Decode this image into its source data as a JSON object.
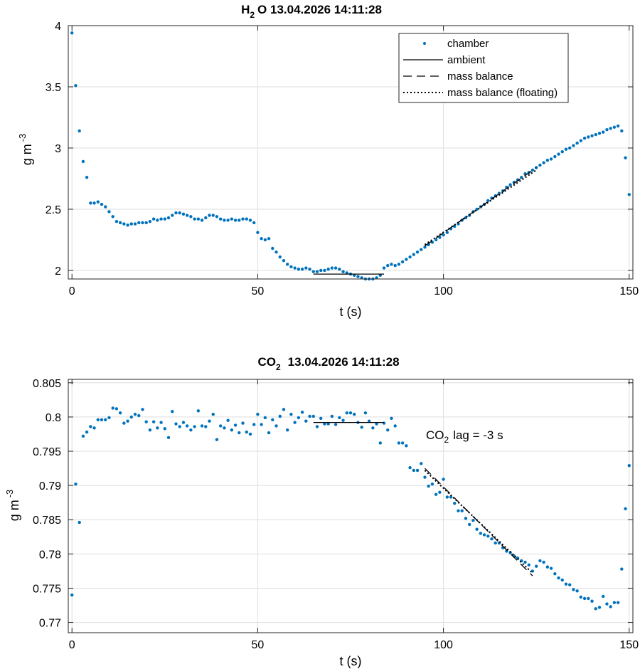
{
  "chart_data": [
    {
      "type": "scatter",
      "title": "H2O  13.04.2026 14:11:28",
      "title_main": "H",
      "title_sub": "2",
      "title_rest": "O  13.04.2026 14:11:28",
      "xlabel": "t (s)",
      "ylabel": "g m",
      "ylabel_sup": "-3",
      "xlim": [
        -1,
        151
      ],
      "ylim": [
        1.93,
        4.0
      ],
      "xticks": [
        0,
        50,
        100,
        150
      ],
      "yticks": [
        2,
        2.5,
        3,
        3.5,
        4
      ],
      "ytick_labels": [
        "2",
        "2.5",
        "3",
        "3.5",
        "4"
      ],
      "grid": true,
      "legend": {
        "position": "top-right",
        "entries": [
          "chamber",
          "ambient",
          "mass balance",
          "mass balance (floating)"
        ]
      },
      "series": [
        {
          "name": "chamber",
          "style": "points",
          "color": "#0072BD",
          "x": [
            0,
            1,
            2,
            3,
            4,
            5,
            6,
            7,
            8,
            9,
            10,
            11,
            12,
            13,
            14,
            15,
            16,
            17,
            18,
            19,
            20,
            21,
            22,
            23,
            24,
            25,
            26,
            27,
            28,
            29,
            30,
            31,
            32,
            33,
            34,
            35,
            36,
            37,
            38,
            39,
            40,
            41,
            42,
            43,
            44,
            45,
            46,
            47,
            48,
            49,
            50,
            51,
            52,
            53,
            54,
            55,
            56,
            57,
            58,
            59,
            60,
            61,
            62,
            63,
            64,
            65,
            66,
            67,
            68,
            69,
            70,
            71,
            72,
            73,
            74,
            75,
            76,
            77,
            78,
            79,
            80,
            81,
            82,
            83,
            84,
            85,
            86,
            87,
            88,
            89,
            90,
            91,
            92,
            93,
            94,
            95,
            96,
            97,
            98,
            99,
            100,
            101,
            102,
            103,
            104,
            105,
            106,
            107,
            108,
            109,
            110,
            111,
            112,
            113,
            114,
            115,
            116,
            117,
            118,
            119,
            120,
            121,
            122,
            123,
            124,
            125,
            126,
            127,
            128,
            129,
            130,
            131,
            132,
            133,
            134,
            135,
            136,
            137,
            138,
            139,
            140,
            141,
            142,
            143,
            144,
            145,
            146,
            147,
            148,
            149,
            150
          ],
          "y": [
            3.94,
            3.51,
            3.14,
            2.89,
            2.76,
            2.55,
            2.55,
            2.56,
            2.54,
            2.52,
            2.48,
            2.44,
            2.4,
            2.39,
            2.38,
            2.37,
            2.38,
            2.38,
            2.39,
            2.39,
            2.39,
            2.4,
            2.42,
            2.41,
            2.42,
            2.42,
            2.43,
            2.45,
            2.47,
            2.47,
            2.46,
            2.45,
            2.44,
            2.42,
            2.42,
            2.41,
            2.43,
            2.45,
            2.45,
            2.44,
            2.42,
            2.41,
            2.41,
            2.42,
            2.41,
            2.41,
            2.42,
            2.42,
            2.41,
            2.39,
            2.31,
            2.26,
            2.25,
            2.26,
            2.18,
            2.15,
            2.11,
            2.08,
            2.05,
            2.03,
            2.02,
            2.01,
            2.01,
            2.02,
            2.01,
            1.99,
            1.99,
            2.0,
            2.0,
            2.01,
            2.02,
            2.02,
            2.01,
            1.99,
            1.98,
            1.97,
            1.96,
            1.95,
            1.94,
            1.93,
            1.93,
            1.93,
            1.94,
            1.96,
            2.02,
            2.04,
            2.05,
            2.04,
            2.05,
            2.07,
            2.09,
            2.11,
            2.13,
            2.15,
            2.17,
            2.19,
            2.21,
            2.23,
            2.25,
            2.27,
            2.29,
            2.31,
            2.34,
            2.36,
            2.38,
            2.41,
            2.43,
            2.45,
            2.48,
            2.5,
            2.52,
            2.54,
            2.57,
            2.59,
            2.61,
            2.63,
            2.65,
            2.68,
            2.7,
            2.72,
            2.74,
            2.76,
            2.79,
            2.8,
            2.82,
            2.84,
            2.86,
            2.88,
            2.9,
            2.91,
            2.93,
            2.95,
            2.97,
            2.99,
            3.0,
            3.02,
            3.04,
            3.06,
            3.08,
            3.09,
            3.1,
            3.11,
            3.12,
            3.13,
            3.15,
            3.16,
            3.17,
            3.18,
            3.14,
            2.92,
            2.62
          ]
        },
        {
          "name": "ambient",
          "style": "solid",
          "color": "#000000",
          "x": [
            65,
            84
          ],
          "y": [
            1.97,
            1.97
          ]
        },
        {
          "name": "mass balance",
          "style": "dashed",
          "color": "#000000",
          "x": [
            95,
            125
          ],
          "y": [
            2.2,
            2.84
          ]
        },
        {
          "name": "mass balance (floating)",
          "style": "dotted",
          "color": "#000000",
          "x": [
            95,
            125
          ],
          "y": [
            2.21,
            2.82
          ]
        }
      ]
    },
    {
      "type": "scatter",
      "title": "CO2  13.04.2026 14:11:28",
      "title_main": "CO",
      "title_sub": "2",
      "title_rest": "13.04.2026 14:11:28",
      "xlabel": "t (s)",
      "ylabel": "g m",
      "ylabel_sup": "-3",
      "xlim": [
        -1,
        151
      ],
      "ylim": [
        0.7685,
        0.8055
      ],
      "xticks": [
        0,
        50,
        100,
        150
      ],
      "yticks": [
        0.77,
        0.775,
        0.78,
        0.785,
        0.79,
        0.795,
        0.8,
        0.805
      ],
      "ytick_labels": [
        "0.77",
        "0.775",
        "0.78",
        "0.785",
        "0.79",
        "0.795",
        "0.8",
        "0.805"
      ],
      "grid": true,
      "annotation": {
        "main": "CO",
        "sub": "2",
        "rest": "lag = -3 s",
        "x": 95,
        "y": 0.7965
      },
      "series": [
        {
          "name": "chamber",
          "style": "points",
          "color": "#0072BD",
          "x": [
            0,
            1,
            2,
            3,
            4,
            5,
            6,
            7,
            8,
            9,
            10,
            11,
            12,
            13,
            14,
            15,
            16,
            17,
            18,
            19,
            20,
            21,
            22,
            23,
            24,
            25,
            26,
            27,
            28,
            29,
            30,
            31,
            32,
            33,
            34,
            35,
            36,
            37,
            38,
            39,
            40,
            41,
            42,
            43,
            44,
            45,
            46,
            47,
            48,
            49,
            50,
            51,
            52,
            53,
            54,
            55,
            56,
            57,
            58,
            59,
            60,
            61,
            62,
            63,
            64,
            65,
            66,
            67,
            68,
            69,
            70,
            71,
            72,
            73,
            74,
            75,
            76,
            77,
            78,
            79,
            80,
            81,
            82,
            83,
            84,
            85,
            86,
            87,
            88,
            89,
            90,
            91,
            92,
            93,
            94,
            95,
            96,
            97,
            98,
            99,
            100,
            101,
            102,
            103,
            104,
            105,
            106,
            107,
            108,
            109,
            110,
            111,
            112,
            113,
            114,
            115,
            116,
            117,
            118,
            119,
            120,
            121,
            122,
            123,
            124,
            125,
            126,
            127,
            128,
            129,
            130,
            131,
            132,
            133,
            134,
            135,
            136,
            137,
            138,
            139,
            140,
            141,
            142,
            143,
            144,
            145,
            146,
            147,
            148,
            149,
            150
          ],
          "y": [
            0.774,
            0.7902,
            0.7846,
            0.7972,
            0.7978,
            0.7986,
            0.7984,
            0.7996,
            0.7996,
            0.7996,
            0.7999,
            0.8013,
            0.8012,
            0.8006,
            0.7991,
            0.7994,
            0.8,
            0.8004,
            0.8002,
            0.8011,
            0.7993,
            0.7981,
            0.7993,
            0.7984,
            0.7992,
            0.7983,
            0.797,
            0.8008,
            0.799,
            0.7986,
            0.7992,
            0.7987,
            0.7981,
            0.7986,
            0.8009,
            0.7987,
            0.7986,
            0.7994,
            0.8004,
            0.7967,
            0.7987,
            0.7984,
            0.7995,
            0.7981,
            0.7988,
            0.7977,
            0.7991,
            0.7978,
            0.7975,
            0.7989,
            0.8004,
            0.7989,
            0.7999,
            0.7977,
            0.7996,
            0.7987,
            0.8001,
            0.8011,
            0.7981,
            0.8004,
            0.7992,
            0.7999,
            0.8007,
            0.7994,
            0.8001,
            0.8001,
            0.7986,
            0.7998,
            0.799,
            0.799,
            0.8001,
            0.7989,
            0.7999,
            0.7995,
            0.8006,
            0.8006,
            0.8004,
            0.7992,
            0.7985,
            0.8006,
            0.7994,
            0.7984,
            0.799,
            0.7962,
            0.7991,
            0.7981,
            0.7998,
            0.7987,
            0.7962,
            0.7962,
            0.7958,
            0.7926,
            0.7922,
            0.7922,
            0.7932,
            0.7912,
            0.7899,
            0.7902,
            0.7887,
            0.789,
            0.7909,
            0.7883,
            0.7883,
            0.7874,
            0.7863,
            0.7863,
            0.7852,
            0.7843,
            0.7849,
            0.7836,
            0.783,
            0.7828,
            0.7826,
            0.7822,
            0.7816,
            0.7816,
            0.7809,
            0.7804,
            0.7802,
            0.7797,
            0.7794,
            0.779,
            0.7788,
            0.7784,
            0.7775,
            0.7782,
            0.779,
            0.7788,
            0.7781,
            0.7779,
            0.7771,
            0.7765,
            0.7762,
            0.7756,
            0.7755,
            0.7748,
            0.7746,
            0.7737,
            0.7735,
            0.7735,
            0.7731,
            0.772,
            0.7722,
            0.7738,
            0.7727,
            0.7723,
            0.7729,
            0.7729,
            0.7778,
            0.7866,
            0.7929
          ]
        },
        {
          "name": "ambient",
          "style": "solid",
          "color": "#000000",
          "x": [
            65,
            84
          ],
          "y": [
            0.7992,
            0.7992
          ]
        },
        {
          "name": "mass balance",
          "style": "dashed",
          "color": "#000000",
          "x": [
            95,
            124
          ],
          "y": [
            0.7925,
            0.7768
          ]
        },
        {
          "name": "mass balance (floating)",
          "style": "dotted",
          "color": "#000000",
          "x": [
            95,
            124
          ],
          "y": [
            0.7922,
            0.7772
          ]
        }
      ]
    }
  ]
}
